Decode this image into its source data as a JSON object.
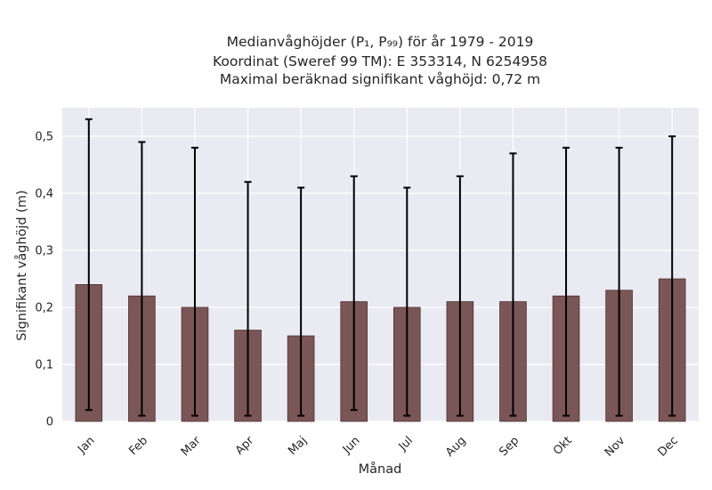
{
  "chart_data": {
    "type": "bar",
    "title_lines": [
      "Medianvåghöjder (P₁, P₉₉) för år 1979 - 2019",
      "Koordinat (Sweref 99 TM): E 353314, N 6254958",
      "Maximal beräknad signifikant våghöjd: 0,72 m"
    ],
    "xlabel": "Månad",
    "ylabel": "Signifikant våghöjd (m)",
    "categories": [
      "Jan",
      "Feb",
      "Mar",
      "Apr",
      "Maj",
      "Jun",
      "Jul",
      "Aug",
      "Sep",
      "Okt",
      "Nov",
      "Dec"
    ],
    "values": [
      0.24,
      0.22,
      0.2,
      0.16,
      0.15,
      0.21,
      0.2,
      0.21,
      0.21,
      0.22,
      0.23,
      0.25
    ],
    "p1": [
      0.02,
      0.01,
      0.01,
      0.01,
      0.01,
      0.02,
      0.01,
      0.01,
      0.01,
      0.01,
      0.01,
      0.01
    ],
    "p99": [
      0.53,
      0.49,
      0.48,
      0.42,
      0.41,
      0.43,
      0.41,
      0.43,
      0.47,
      0.48,
      0.48,
      0.5
    ],
    "ylim": [
      0,
      0.55
    ],
    "yticks": [
      0,
      0.1,
      0.2,
      0.3,
      0.4,
      0.5
    ],
    "ytick_labels": [
      "0",
      "0,1",
      "0,2",
      "0,3",
      "0,4",
      "0,5"
    ],
    "grid": true,
    "colors": {
      "bar": "#7b5656",
      "bar_edge": "#4a3232",
      "errorbar": "#000000",
      "plot_background": "#eaeaf2",
      "grid": "#ffffff"
    }
  }
}
